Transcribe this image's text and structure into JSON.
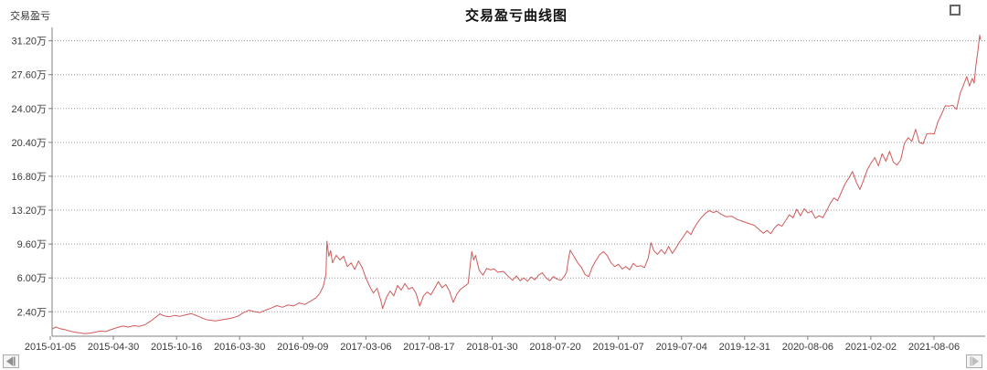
{
  "window": {
    "icons": {
      "maximize": "square-outline",
      "page_left": "left-triangle-with-bar",
      "page_right": "right-triangle-with-bar"
    }
  },
  "colors": {
    "line": "#d05a5a",
    "grid": "#999999",
    "axis": "#808080",
    "tick_text": "#3a3a3a",
    "title_text": "#111111"
  },
  "chart_data": {
    "type": "line",
    "title": "交易盈亏曲线图",
    "ylabel": "交易盈亏",
    "unit": "万",
    "grid": "horizontal-dotted",
    "legend_position": "none",
    "ylim": [
      0,
      33.6
    ],
    "y_ticks": [
      {
        "label": "31.20万",
        "value": 31.2
      },
      {
        "label": "27.60万",
        "value": 27.6
      },
      {
        "label": "24.00万",
        "value": 24.0
      },
      {
        "label": "20.40万",
        "value": 20.4
      },
      {
        "label": "16.80万",
        "value": 16.8
      },
      {
        "label": "13.20万",
        "value": 13.2
      },
      {
        "label": "9.60万",
        "value": 9.6
      },
      {
        "label": "6.00万",
        "value": 6.0
      },
      {
        "label": "2.40万",
        "value": 2.4
      }
    ],
    "x_ticks": [
      "2015-01-05",
      "2015-04-30",
      "2015-10-16",
      "2016-03-30",
      "2016-09-09",
      "2017-03-06",
      "2017-08-17",
      "2018-01-30",
      "2018-07-20",
      "2019-01-07",
      "2019-07-04",
      "2019-12-31",
      "2020-08-06",
      "2021-02-02",
      "2021-08-06"
    ],
    "series": [
      {
        "name": "交易盈亏",
        "color": "#d05a5a",
        "points": [
          [
            0.0,
            0.55
          ],
          [
            0.004,
            0.8
          ],
          [
            0.008,
            0.62
          ],
          [
            0.014,
            0.5
          ],
          [
            0.02,
            0.32
          ],
          [
            0.028,
            0.18
          ],
          [
            0.036,
            0.08
          ],
          [
            0.044,
            0.18
          ],
          [
            0.052,
            0.35
          ],
          [
            0.058,
            0.3
          ],
          [
            0.064,
            0.52
          ],
          [
            0.07,
            0.72
          ],
          [
            0.076,
            0.88
          ],
          [
            0.082,
            0.78
          ],
          [
            0.088,
            0.92
          ],
          [
            0.094,
            0.85
          ],
          [
            0.1,
            1.02
          ],
          [
            0.106,
            1.4
          ],
          [
            0.112,
            1.85
          ],
          [
            0.116,
            2.18
          ],
          [
            0.12,
            1.98
          ],
          [
            0.126,
            1.86
          ],
          [
            0.132,
            2.02
          ],
          [
            0.138,
            1.92
          ],
          [
            0.144,
            2.08
          ],
          [
            0.15,
            2.2
          ],
          [
            0.156,
            1.98
          ],
          [
            0.162,
            1.72
          ],
          [
            0.168,
            1.52
          ],
          [
            0.176,
            1.44
          ],
          [
            0.184,
            1.56
          ],
          [
            0.192,
            1.7
          ],
          [
            0.2,
            1.92
          ],
          [
            0.206,
            2.3
          ],
          [
            0.212,
            2.56
          ],
          [
            0.218,
            2.42
          ],
          [
            0.224,
            2.32
          ],
          [
            0.23,
            2.58
          ],
          [
            0.236,
            2.8
          ],
          [
            0.242,
            3.06
          ],
          [
            0.248,
            2.88
          ],
          [
            0.254,
            3.12
          ],
          [
            0.26,
            3.02
          ],
          [
            0.266,
            3.34
          ],
          [
            0.272,
            3.18
          ],
          [
            0.278,
            3.5
          ],
          [
            0.284,
            3.86
          ],
          [
            0.288,
            4.3
          ],
          [
            0.292,
            5.1
          ],
          [
            0.295,
            6.4
          ],
          [
            0.296,
            9.9
          ],
          [
            0.298,
            8.3
          ],
          [
            0.3,
            8.9
          ],
          [
            0.302,
            7.6
          ],
          [
            0.306,
            8.4
          ],
          [
            0.31,
            7.9
          ],
          [
            0.314,
            8.3
          ],
          [
            0.318,
            7.2
          ],
          [
            0.322,
            7.6
          ],
          [
            0.326,
            6.9
          ],
          [
            0.33,
            7.8
          ],
          [
            0.334,
            7.1
          ],
          [
            0.338,
            6.0
          ],
          [
            0.342,
            5.1
          ],
          [
            0.346,
            4.4
          ],
          [
            0.35,
            4.9
          ],
          [
            0.354,
            3.6
          ],
          [
            0.356,
            2.75
          ],
          [
            0.36,
            3.9
          ],
          [
            0.364,
            4.6
          ],
          [
            0.368,
            4.1
          ],
          [
            0.372,
            5.2
          ],
          [
            0.376,
            4.7
          ],
          [
            0.38,
            5.4
          ],
          [
            0.384,
            4.8
          ],
          [
            0.388,
            5.0
          ],
          [
            0.392,
            4.35
          ],
          [
            0.396,
            3.0
          ],
          [
            0.4,
            4.1
          ],
          [
            0.404,
            4.5
          ],
          [
            0.408,
            4.2
          ],
          [
            0.412,
            4.9
          ],
          [
            0.416,
            5.6
          ],
          [
            0.42,
            4.95
          ],
          [
            0.424,
            5.3
          ],
          [
            0.428,
            4.6
          ],
          [
            0.432,
            3.4
          ],
          [
            0.436,
            4.3
          ],
          [
            0.44,
            4.8
          ],
          [
            0.448,
            5.4
          ],
          [
            0.452,
            8.8
          ],
          [
            0.454,
            7.9
          ],
          [
            0.456,
            8.4
          ],
          [
            0.46,
            6.8
          ],
          [
            0.464,
            6.3
          ],
          [
            0.468,
            7.0
          ],
          [
            0.472,
            6.85
          ],
          [
            0.476,
            6.95
          ],
          [
            0.48,
            6.6
          ],
          [
            0.486,
            6.7
          ],
          [
            0.492,
            6.1
          ],
          [
            0.496,
            5.75
          ],
          [
            0.5,
            6.2
          ],
          [
            0.504,
            5.7
          ],
          [
            0.508,
            6.0
          ],
          [
            0.512,
            5.65
          ],
          [
            0.516,
            6.1
          ],
          [
            0.52,
            5.8
          ],
          [
            0.524,
            6.3
          ],
          [
            0.528,
            6.55
          ],
          [
            0.532,
            6.0
          ],
          [
            0.536,
            5.7
          ],
          [
            0.54,
            6.15
          ],
          [
            0.544,
            5.85
          ],
          [
            0.548,
            5.75
          ],
          [
            0.552,
            6.2
          ],
          [
            0.554,
            6.6
          ],
          [
            0.556,
            7.9
          ],
          [
            0.558,
            8.95
          ],
          [
            0.562,
            8.3
          ],
          [
            0.566,
            7.6
          ],
          [
            0.57,
            7.15
          ],
          [
            0.574,
            6.35
          ],
          [
            0.578,
            6.15
          ],
          [
            0.582,
            7.2
          ],
          [
            0.586,
            7.9
          ],
          [
            0.59,
            8.5
          ],
          [
            0.594,
            8.8
          ],
          [
            0.598,
            8.35
          ],
          [
            0.602,
            7.6
          ],
          [
            0.606,
            7.2
          ],
          [
            0.61,
            7.45
          ],
          [
            0.614,
            6.95
          ],
          [
            0.618,
            7.2
          ],
          [
            0.622,
            6.85
          ],
          [
            0.626,
            7.55
          ],
          [
            0.63,
            7.2
          ],
          [
            0.634,
            7.3
          ],
          [
            0.638,
            7.1
          ],
          [
            0.642,
            8.1
          ],
          [
            0.645,
            9.75
          ],
          [
            0.648,
            8.9
          ],
          [
            0.652,
            8.5
          ],
          [
            0.656,
            9.0
          ],
          [
            0.66,
            8.55
          ],
          [
            0.664,
            9.35
          ],
          [
            0.668,
            8.6
          ],
          [
            0.672,
            9.2
          ],
          [
            0.676,
            9.85
          ],
          [
            0.68,
            10.4
          ],
          [
            0.684,
            11.0
          ],
          [
            0.688,
            10.6
          ],
          [
            0.692,
            11.4
          ],
          [
            0.696,
            12.0
          ],
          [
            0.7,
            12.5
          ],
          [
            0.704,
            12.9
          ],
          [
            0.708,
            13.15
          ],
          [
            0.712,
            12.95
          ],
          [
            0.716,
            13.1
          ],
          [
            0.72,
            12.8
          ],
          [
            0.726,
            12.5
          ],
          [
            0.732,
            12.55
          ],
          [
            0.738,
            12.2
          ],
          [
            0.744,
            12.0
          ],
          [
            0.75,
            11.8
          ],
          [
            0.756,
            11.6
          ],
          [
            0.762,
            11.1
          ],
          [
            0.766,
            10.75
          ],
          [
            0.77,
            11.05
          ],
          [
            0.774,
            10.7
          ],
          [
            0.778,
            11.3
          ],
          [
            0.782,
            11.7
          ],
          [
            0.786,
            11.5
          ],
          [
            0.79,
            12.1
          ],
          [
            0.794,
            12.7
          ],
          [
            0.798,
            12.4
          ],
          [
            0.802,
            13.3
          ],
          [
            0.806,
            12.6
          ],
          [
            0.81,
            13.35
          ],
          [
            0.814,
            12.9
          ],
          [
            0.818,
            13.1
          ],
          [
            0.822,
            12.35
          ],
          [
            0.826,
            12.6
          ],
          [
            0.83,
            12.4
          ],
          [
            0.834,
            13.1
          ],
          [
            0.838,
            13.9
          ],
          [
            0.842,
            14.5
          ],
          [
            0.846,
            14.2
          ],
          [
            0.85,
            15.1
          ],
          [
            0.854,
            16.0
          ],
          [
            0.858,
            16.6
          ],
          [
            0.862,
            17.3
          ],
          [
            0.866,
            16.2
          ],
          [
            0.87,
            15.4
          ],
          [
            0.874,
            16.4
          ],
          [
            0.878,
            17.5
          ],
          [
            0.882,
            18.2
          ],
          [
            0.886,
            18.8
          ],
          [
            0.89,
            17.9
          ],
          [
            0.894,
            19.2
          ],
          [
            0.898,
            18.4
          ],
          [
            0.902,
            19.45
          ],
          [
            0.906,
            18.3
          ],
          [
            0.91,
            18.0
          ],
          [
            0.914,
            18.55
          ],
          [
            0.918,
            20.3
          ],
          [
            0.922,
            20.9
          ],
          [
            0.926,
            20.5
          ],
          [
            0.93,
            21.8
          ],
          [
            0.934,
            20.4
          ],
          [
            0.938,
            20.25
          ],
          [
            0.942,
            21.3
          ],
          [
            0.946,
            21.35
          ],
          [
            0.95,
            21.3
          ],
          [
            0.954,
            22.6
          ],
          [
            0.958,
            23.4
          ],
          [
            0.962,
            24.3
          ],
          [
            0.966,
            24.25
          ],
          [
            0.97,
            24.35
          ],
          [
            0.974,
            23.9
          ],
          [
            0.978,
            25.6
          ],
          [
            0.982,
            26.6
          ],
          [
            0.985,
            27.4
          ],
          [
            0.988,
            26.4
          ],
          [
            0.991,
            27.2
          ],
          [
            0.993,
            26.7
          ],
          [
            0.995,
            28.6
          ],
          [
            0.997,
            30.1
          ],
          [
            0.999,
            31.8
          ],
          [
            1.0,
            31.3
          ]
        ]
      }
    ]
  }
}
